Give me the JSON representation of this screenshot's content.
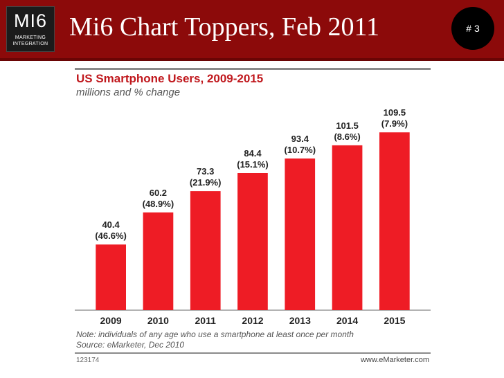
{
  "slide": {
    "logo_main": "MI6",
    "logo_line1": "MARKETING",
    "logo_line2": "INTEGRATION",
    "title": "Mi6 Chart Toppers, Feb 2011",
    "number": "# 3"
  },
  "chart_data": {
    "type": "bar",
    "title": "US Smartphone Users, 2009-2015",
    "subtitle": "millions and % change",
    "categories": [
      "2009",
      "2010",
      "2011",
      "2012",
      "2013",
      "2014",
      "2015"
    ],
    "values": [
      40.4,
      60.2,
      73.3,
      84.4,
      93.4,
      101.5,
      109.5
    ],
    "value_labels": [
      "40.4",
      "60.2",
      "73.3",
      "84.4",
      "93.4",
      "101.5",
      "109.5"
    ],
    "change_labels": [
      "(46.6%)",
      "(48.9%)",
      "(21.9%)",
      "(15.1%)",
      "(10.7%)",
      "(8.6%)",
      "(7.9%)"
    ],
    "ylim": [
      0,
      110
    ],
    "grid": false,
    "bar_color": "#ee1c25",
    "note": "Note: individuals of any age who use a smartphone at least once per month",
    "source": "Source: eMarketer, Dec 2010",
    "id": "123174",
    "brand": "www.eMarketer.com"
  },
  "colors": {
    "header_bg": "#8c0a0a",
    "title_red": "#c0181d"
  }
}
